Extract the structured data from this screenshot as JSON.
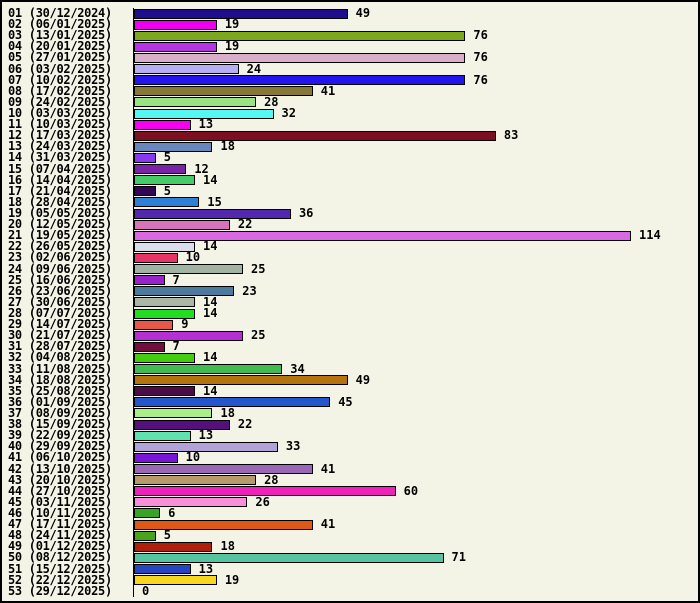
{
  "chart_data": {
    "type": "bar",
    "orientation": "horizontal",
    "title": "",
    "xlabel": "",
    "ylabel": "",
    "xlim": [
      0,
      114
    ],
    "grid": false,
    "legend": "none",
    "value_labels_position": "right-of-bar",
    "background_color": "#F4F4E6",
    "axis_color": "#000000",
    "text_color": "#000000",
    "bar_outline_color": "#000000",
    "categories": [
      "01 (30/12/2024)",
      "02 (06/01/2025)",
      "03 (13/01/2025)",
      "04 (20/01/2025)",
      "05 (27/01/2025)",
      "06 (03/02/2025)",
      "07 (10/02/2025)",
      "08 (17/02/2025)",
      "09 (24/02/2025)",
      "10 (03/03/2025)",
      "11 (10/03/2025)",
      "12 (17/03/2025)",
      "13 (24/03/2025)",
      "14 (31/03/2025)",
      "15 (07/04/2025)",
      "16 (14/04/2025)",
      "17 (21/04/2025)",
      "18 (28/04/2025)",
      "19 (05/05/2025)",
      "20 (12/05/2025)",
      "21 (19/05/2025)",
      "22 (26/05/2025)",
      "23 (02/06/2025)",
      "24 (09/06/2025)",
      "25 (16/06/2025)",
      "26 (23/06/2025)",
      "27 (30/06/2025)",
      "28 (07/07/2025)",
      "29 (14/07/2025)",
      "30 (21/07/2025)",
      "31 (28/07/2025)",
      "32 (04/08/2025)",
      "33 (11/08/2025)",
      "34 (18/08/2025)",
      "35 (25/08/2025)",
      "36 (01/09/2025)",
      "37 (08/09/2025)",
      "38 (15/09/2025)",
      "39 (22/09/2025)",
      "40 (29/09/2025)",
      "41 (06/10/2025)",
      "42 (13/10/2025)",
      "43 (20/10/2025)",
      "44 (27/10/2025)",
      "45 (03/11/2025)",
      "46 (10/11/2025)",
      "47 (17/11/2025)",
      "48 (24/11/2025)",
      "49 (01/12/2025)",
      "50 (08/12/2025)",
      "51 (15/12/2025)",
      "52 (22/12/2025)",
      "53 (29/12/2025)"
    ],
    "values": [
      49,
      19,
      76,
      19,
      76,
      24,
      76,
      41,
      28,
      32,
      13,
      83,
      18,
      5,
      12,
      14,
      5,
      15,
      36,
      22,
      114,
      14,
      10,
      25,
      7,
      23,
      14,
      14,
      9,
      25,
      7,
      14,
      34,
      49,
      14,
      45,
      18,
      22,
      13,
      33,
      10,
      41,
      28,
      60,
      26,
      6,
      41,
      5,
      18,
      71,
      13,
      19,
      0
    ],
    "bar_colors": [
      "#1E0D8C",
      "#EE00EE",
      "#7CA81E",
      "#B535E3",
      "#D9AECB",
      "#B6B0F2",
      "#2414EE",
      "#877835",
      "#9AE381",
      "#55F7F2",
      "#F500F0",
      "#7C1021",
      "#6787BC",
      "#8838F0",
      "#7A22A8",
      "#45CC66",
      "#330555",
      "#2E7FD6",
      "#5428AE",
      "#D673BB",
      "#DA68E3",
      "#D9DDEC",
      "#E83366",
      "#A1B4A4",
      "#9A22CC",
      "#4A7A9E",
      "#A9B7A4",
      "#22DD22",
      "#E8584A",
      "#B52FD5",
      "#730D3D",
      "#44CC11",
      "#41BB51",
      "#B5730D",
      "#4A0B47",
      "#2455CC",
      "#AAEE88",
      "#56107E",
      "#5FE2AD",
      "#B1A3D7",
      "#7716D9",
      "#9B68B7",
      "#B69A6A",
      "#EE22BB",
      "#F98FD9",
      "#37A423",
      "#DE5817",
      "#47A41B",
      "#B01E0C",
      "#56C4A1",
      "#2646BD",
      "#F7D720",
      "#F4F4E6"
    ]
  }
}
